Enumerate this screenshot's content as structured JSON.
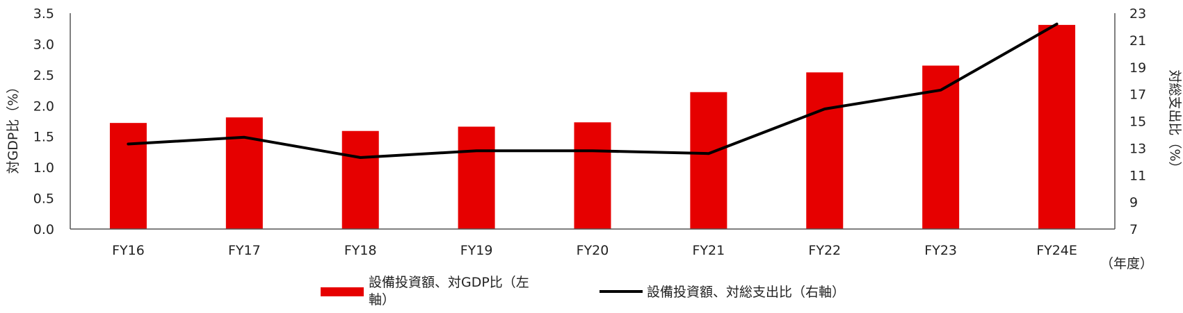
{
  "chart_data": {
    "type": "bar+line",
    "categories": [
      "FY16",
      "FY17",
      "FY18",
      "FY19",
      "FY20",
      "FY21",
      "FY22",
      "FY23",
      "FY24E"
    ],
    "x_unit_label": "（年度）",
    "series": [
      {
        "name_lines": [
          "設備投資額、対GDP比（左",
          "軸）"
        ],
        "type": "bar",
        "axis": "left",
        "color": "#e60000",
        "values": [
          1.72,
          1.81,
          1.59,
          1.66,
          1.73,
          2.22,
          2.54,
          2.65,
          3.31
        ]
      },
      {
        "name": "設備投資額、対総支出比（右軸）",
        "type": "line",
        "axis": "right",
        "color": "#000000",
        "values": [
          13.3,
          13.8,
          12.3,
          12.8,
          12.8,
          12.6,
          15.9,
          17.3,
          22.2
        ]
      }
    ],
    "y_left": {
      "label": "対GDP比（%）",
      "min": 0.0,
      "max": 3.5,
      "ticks": [
        "0.0",
        "0.5",
        "1.0",
        "1.5",
        "2.0",
        "2.5",
        "3.0",
        "3.5"
      ]
    },
    "y_right": {
      "label": "対総支出比（%）",
      "min": 7,
      "max": 23,
      "ticks": [
        "7",
        "9",
        "11",
        "13",
        "15",
        "17",
        "19",
        "21",
        "23"
      ]
    },
    "grid": false,
    "legend_position": "bottom"
  }
}
